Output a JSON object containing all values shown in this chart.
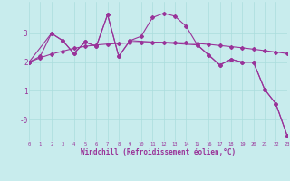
{
  "xlabel": "Windchill (Refroidissement éolien,°C)",
  "bg_color": "#c8eced",
  "line_color": "#993399",
  "grid_color": "#aadddd",
  "series1_x": [
    0,
    1,
    2,
    3,
    4,
    5,
    6,
    7,
    8,
    9,
    10,
    11,
    12,
    13,
    14,
    15,
    16,
    17,
    18,
    19,
    20,
    21,
    22,
    23
  ],
  "series1_y": [
    2.0,
    2.2,
    3.0,
    2.75,
    2.3,
    2.7,
    2.55,
    3.65,
    2.2,
    2.75,
    2.9,
    3.55,
    3.7,
    3.6,
    3.25,
    2.6,
    2.25,
    1.9,
    2.1,
    2.0,
    2.0,
    1.05,
    0.55,
    -0.55
  ],
  "series2_x": [
    0,
    1,
    2,
    3,
    4,
    5,
    6,
    7,
    8,
    9,
    10,
    11,
    12,
    13,
    14,
    15,
    16,
    17,
    18,
    19,
    20,
    21,
    22,
    23
  ],
  "series2_y": [
    2.0,
    2.15,
    2.28,
    2.38,
    2.48,
    2.55,
    2.6,
    2.63,
    2.65,
    2.67,
    2.68,
    2.69,
    2.69,
    2.68,
    2.67,
    2.65,
    2.62,
    2.58,
    2.54,
    2.5,
    2.45,
    2.4,
    2.35,
    2.3
  ],
  "series3_x": [
    0,
    2,
    3,
    4,
    5,
    6,
    7,
    8,
    9,
    15,
    16,
    17,
    18,
    19,
    20,
    21,
    22,
    23
  ],
  "series3_y": [
    2.0,
    3.0,
    2.75,
    2.3,
    2.7,
    2.55,
    3.65,
    2.2,
    2.75,
    2.6,
    2.25,
    1.9,
    2.1,
    2.0,
    2.0,
    1.05,
    0.55,
    -0.55
  ],
  "ylim": [
    -0.75,
    4.1
  ],
  "xlim": [
    0,
    23
  ],
  "yticks": [
    0,
    1,
    2,
    3
  ],
  "ytick_labels": [
    "-0",
    "1",
    "2",
    "3"
  ],
  "xticks": [
    0,
    1,
    2,
    3,
    4,
    5,
    6,
    7,
    8,
    9,
    10,
    11,
    12,
    13,
    14,
    15,
    16,
    17,
    18,
    19,
    20,
    21,
    22,
    23
  ]
}
